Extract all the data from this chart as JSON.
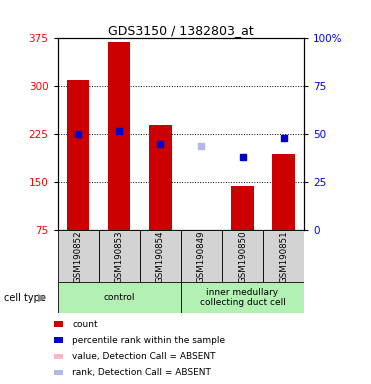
{
  "title": "GDS3150 / 1382803_at",
  "samples": [
    "GSM190852",
    "GSM190853",
    "GSM190854",
    "GSM190849",
    "GSM190850",
    "GSM190851"
  ],
  "counts": [
    310,
    370,
    240,
    75,
    145,
    195
  ],
  "percentiles": [
    50,
    52,
    45,
    44,
    38,
    48
  ],
  "absent": [
    false,
    false,
    false,
    true,
    false,
    false
  ],
  "groups": [
    {
      "label": "control",
      "indices": [
        0,
        2
      ],
      "color": "#b3f0b3"
    },
    {
      "label": "inner medullary\ncollecting duct cell",
      "indices": [
        3,
        5
      ],
      "color": "#b3f0b3"
    }
  ],
  "ylim_left": [
    75,
    375
  ],
  "ylim_right": [
    0,
    100
  ],
  "yticks_left": [
    75,
    150,
    225,
    300,
    375
  ],
  "yticks_right": [
    0,
    25,
    50,
    75,
    100
  ],
  "bar_color": "#cc0000",
  "bar_color_absent": "#ffb6c1",
  "dot_color": "#0000cc",
  "dot_color_absent": "#b0b8e8",
  "bar_width": 0.55,
  "background_plot": "#ffffff",
  "background_label": "#d3d3d3",
  "legend": [
    {
      "label": "count",
      "color": "#cc0000"
    },
    {
      "label": "percentile rank within the sample",
      "color": "#0000cc"
    },
    {
      "label": "value, Detection Call = ABSENT",
      "color": "#ffb6c1"
    },
    {
      "label": "rank, Detection Call = ABSENT",
      "color": "#b0b8e8"
    }
  ]
}
